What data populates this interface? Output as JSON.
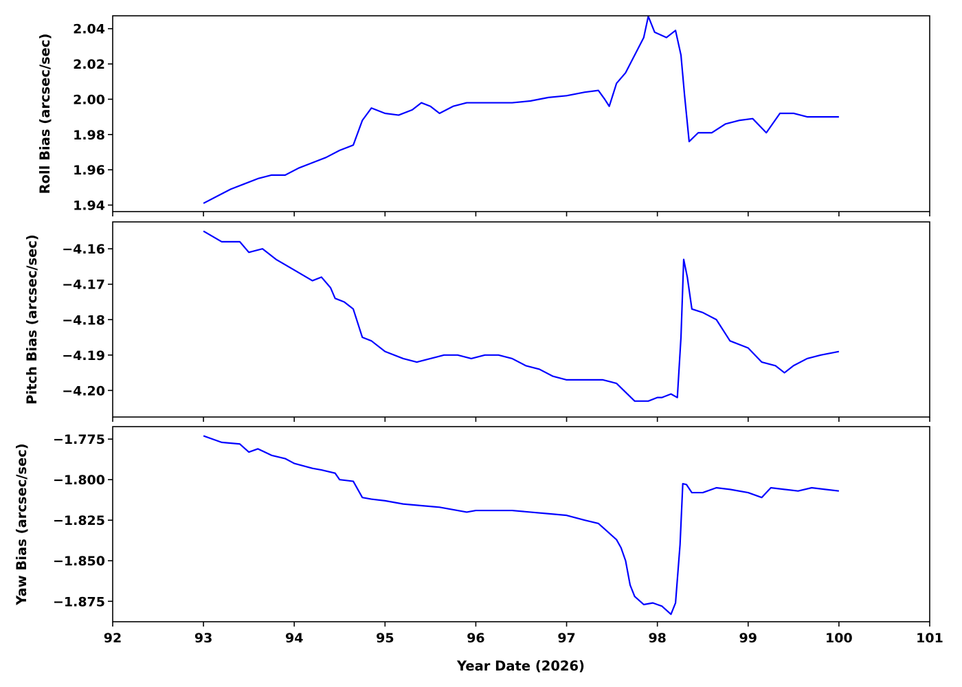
{
  "chart_data": [
    {
      "type": "line",
      "ylabel": "Roll Bias (arcsec/sec)",
      "xlim": [
        92,
        101
      ],
      "ylim": [
        1.9363,
        2.0473
      ],
      "yticks": [
        1.94,
        1.96,
        1.98,
        2.0,
        2.02,
        2.04
      ],
      "ytick_labels": [
        "1.94",
        "1.96",
        "1.98",
        "2.00",
        "2.02",
        "2.04"
      ],
      "xticks": [
        92,
        93,
        94,
        95,
        96,
        97,
        98,
        99,
        100,
        101
      ],
      "xtick_labels": [],
      "grid": false,
      "series": [
        {
          "color": "#0000ff",
          "x": [
            93.0,
            93.15,
            93.3,
            93.45,
            93.6,
            93.75,
            93.9,
            94.05,
            94.2,
            94.35,
            94.5,
            94.65,
            94.75,
            94.85,
            95.0,
            95.15,
            95.3,
            95.4,
            95.5,
            95.6,
            95.75,
            95.9,
            96.0,
            96.2,
            96.4,
            96.6,
            96.8,
            97.0,
            97.2,
            97.35,
            97.42,
            97.47,
            97.55,
            97.65,
            97.75,
            97.85,
            97.9,
            97.97,
            98.1,
            98.2,
            98.26,
            98.3,
            98.35,
            98.45,
            98.6,
            98.75,
            98.9,
            99.05,
            99.2,
            99.35,
            99.5,
            99.65,
            99.8,
            100.0
          ],
          "y": [
            1.941,
            1.945,
            1.949,
            1.952,
            1.955,
            1.957,
            1.957,
            1.961,
            1.964,
            1.967,
            1.971,
            1.974,
            1.988,
            1.995,
            1.992,
            1.991,
            1.994,
            1.998,
            1.996,
            1.992,
            1.996,
            1.998,
            1.998,
            1.998,
            1.998,
            1.999,
            2.001,
            2.002,
            2.004,
            2.005,
            2.0,
            1.996,
            2.009,
            2.015,
            2.025,
            2.035,
            2.047,
            2.038,
            2.035,
            2.039,
            2.025,
            2.002,
            1.976,
            1.981,
            1.981,
            1.986,
            1.988,
            1.989,
            1.981,
            1.992,
            1.992,
            1.99,
            1.99,
            1.99
          ]
        }
      ]
    },
    {
      "type": "line",
      "ylabel": "Pitch Bias (arcsec/sec)",
      "xlim": [
        92,
        101
      ],
      "ylim": [
        -4.2075,
        -4.1524
      ],
      "yticks": [
        -4.16,
        -4.17,
        -4.18,
        -4.19,
        -4.2
      ],
      "ytick_labels": [
        "−4.16",
        "−4.17",
        "−4.18",
        "−4.19",
        "−4.20"
      ],
      "xticks": [
        92,
        93,
        94,
        95,
        96,
        97,
        98,
        99,
        100,
        101
      ],
      "xtick_labels": [],
      "grid": false,
      "series": [
        {
          "color": "#0000ff",
          "x": [
            93.0,
            93.2,
            93.4,
            93.5,
            93.65,
            93.8,
            94.0,
            94.2,
            94.3,
            94.4,
            94.45,
            94.55,
            94.65,
            94.75,
            94.85,
            95.0,
            95.2,
            95.35,
            95.5,
            95.65,
            95.8,
            95.95,
            96.1,
            96.25,
            96.4,
            96.55,
            96.7,
            96.85,
            97.0,
            97.2,
            97.4,
            97.55,
            97.75,
            97.9,
            98.0,
            98.05,
            98.15,
            98.22,
            98.26,
            98.29,
            98.33,
            98.38,
            98.5,
            98.65,
            98.8,
            99.0,
            99.15,
            99.3,
            99.4,
            99.5,
            99.65,
            99.8,
            100.0
          ],
          "y": [
            -4.155,
            -4.158,
            -4.158,
            -4.161,
            -4.16,
            -4.163,
            -4.166,
            -4.169,
            -4.168,
            -4.171,
            -4.174,
            -4.175,
            -4.177,
            -4.185,
            -4.186,
            -4.189,
            -4.191,
            -4.192,
            -4.191,
            -4.19,
            -4.19,
            -4.191,
            -4.19,
            -4.19,
            -4.191,
            -4.193,
            -4.194,
            -4.196,
            -4.197,
            -4.197,
            -4.197,
            -4.198,
            -4.203,
            -4.203,
            -4.202,
            -4.202,
            -4.201,
            -4.202,
            -4.185,
            -4.163,
            -4.168,
            -4.177,
            -4.178,
            -4.18,
            -4.186,
            -4.188,
            -4.192,
            -4.193,
            -4.195,
            -4.193,
            -4.191,
            -4.19,
            -4.189
          ]
        }
      ]
    },
    {
      "type": "line",
      "ylabel": "Yaw Bias (arcsec/sec)",
      "xlim": [
        92,
        101
      ],
      "ylim": [
        -1.8876,
        -1.7673
      ],
      "yticks": [
        -1.775,
        -1.8,
        -1.825,
        -1.85,
        -1.875
      ],
      "ytick_labels": [
        "−1.775",
        "−1.800",
        "−1.825",
        "−1.850",
        "−1.875"
      ],
      "xticks": [
        92,
        93,
        94,
        95,
        96,
        97,
        98,
        99,
        100,
        101
      ],
      "xtick_labels": [
        "92",
        "93",
        "94",
        "95",
        "96",
        "97",
        "98",
        "99",
        "100",
        "101"
      ],
      "xlabel": "Year Date (2026)",
      "grid": false,
      "series": [
        {
          "color": "#0000ff",
          "x": [
            93.0,
            93.2,
            93.4,
            93.5,
            93.6,
            93.75,
            93.9,
            94.0,
            94.2,
            94.3,
            94.45,
            94.5,
            94.65,
            94.75,
            94.85,
            95.0,
            95.2,
            95.4,
            95.6,
            95.8,
            95.9,
            96.0,
            96.2,
            96.4,
            96.6,
            96.8,
            97.0,
            97.2,
            97.35,
            97.45,
            97.55,
            97.6,
            97.65,
            97.7,
            97.75,
            97.85,
            97.95,
            98.0,
            98.05,
            98.15,
            98.2,
            98.25,
            98.28,
            98.32,
            98.38,
            98.5,
            98.65,
            98.8,
            99.0,
            99.15,
            99.25,
            99.4,
            99.55,
            99.7,
            99.85,
            100.0
          ],
          "y": [
            -1.773,
            -1.777,
            -1.778,
            -1.783,
            -1.781,
            -1.785,
            -1.787,
            -1.79,
            -1.793,
            -1.794,
            -1.796,
            -1.8,
            -1.801,
            -1.811,
            -1.812,
            -1.813,
            -1.815,
            -1.816,
            -1.817,
            -1.819,
            -1.82,
            -1.819,
            -1.819,
            -1.819,
            -1.82,
            -1.821,
            -1.822,
            -1.825,
            -1.827,
            -1.832,
            -1.837,
            -1.842,
            -1.85,
            -1.865,
            -1.872,
            -1.877,
            -1.876,
            -1.877,
            -1.878,
            -1.883,
            -1.876,
            -1.84,
            -1.8025,
            -1.803,
            -1.808,
            -1.808,
            -1.805,
            -1.806,
            -1.808,
            -1.811,
            -1.805,
            -1.806,
            -1.807,
            -1.805,
            -1.806,
            -1.807
          ]
        }
      ]
    }
  ]
}
